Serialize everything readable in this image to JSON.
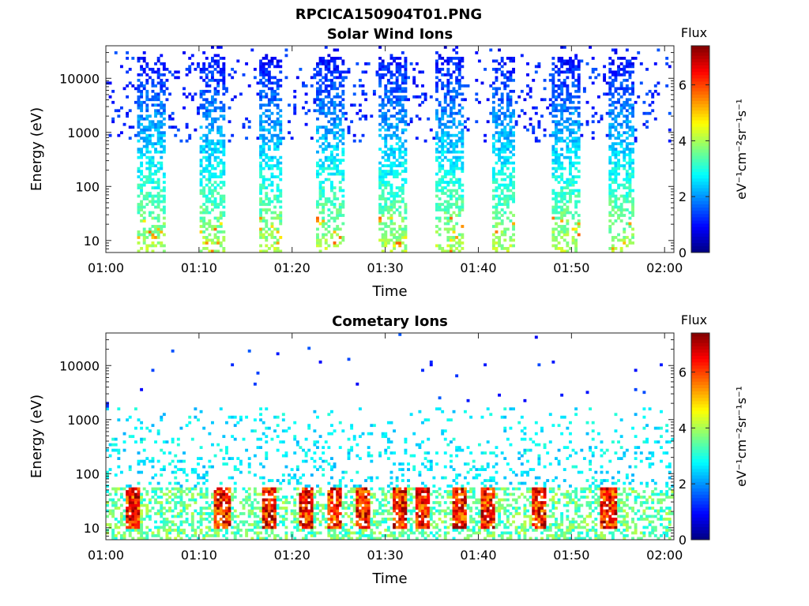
{
  "figure": {
    "title": "RPCICA150904T01.PNG",
    "colorscale": [
      "#00007f",
      "#0000ff",
      "#007fff",
      "#00ffff",
      "#7fff7f",
      "#ffff00",
      "#ff7f00",
      "#ff0000",
      "#7f0000"
    ]
  },
  "chart_data": [
    {
      "type": "heatmap",
      "title": "Solar Wind Ions",
      "xlabel": "Time",
      "ylabel": "Energy (eV)",
      "xticks": [
        "01:00",
        "01:10",
        "01:20",
        "01:30",
        "01:40",
        "01:50",
        "02:00"
      ],
      "xlim_minutes": [
        0,
        61
      ],
      "yscale": "log",
      "ylim": [
        6,
        40000
      ],
      "yticks": [
        10,
        100,
        1000,
        10000
      ],
      "yticklabels": [
        "10",
        "100",
        "1000",
        "10000"
      ],
      "colorbar": {
        "title": "Flux",
        "label": "eV⁻¹cm⁻²sr⁻¹s⁻¹",
        "ticks": [
          0,
          2,
          4,
          6
        ],
        "range": [
          0,
          7.4
        ]
      },
      "pattern": "periodic bursts",
      "bursts_minutes": [
        [
          3.5,
          6.5
        ],
        [
          10,
          12.8
        ],
        [
          16.5,
          19
        ],
        [
          22.5,
          25.5
        ],
        [
          29.3,
          32.3
        ],
        [
          35.3,
          38.5
        ],
        [
          41.5,
          44
        ],
        [
          47.8,
          50.8
        ],
        [
          54,
          56.8
        ]
      ],
      "background_hi_energy": true
    },
    {
      "type": "heatmap",
      "title": "Cometary Ions",
      "xlabel": "Time",
      "ylabel": "Energy (eV)",
      "xticks": [
        "01:00",
        "01:10",
        "01:20",
        "01:30",
        "01:40",
        "01:50",
        "02:00"
      ],
      "xlim_minutes": [
        0,
        61
      ],
      "yscale": "log",
      "ylim": [
        6,
        40000
      ],
      "yticks": [
        10,
        100,
        1000,
        10000
      ],
      "yticklabels": [
        "10",
        "100",
        "1000",
        "10000"
      ],
      "colorbar": {
        "title": "Flux",
        "label": "eV⁻¹cm⁻²sr⁻¹s⁻¹",
        "ticks": [
          0,
          2,
          4,
          6
        ],
        "range": [
          0,
          7.4
        ]
      },
      "pattern": "low-energy band",
      "hot_spots_minutes": [
        3,
        12.5,
        17.5,
        21.5,
        24.5,
        27.5,
        31.5,
        34,
        38,
        41,
        46.5,
        54
      ]
    }
  ]
}
